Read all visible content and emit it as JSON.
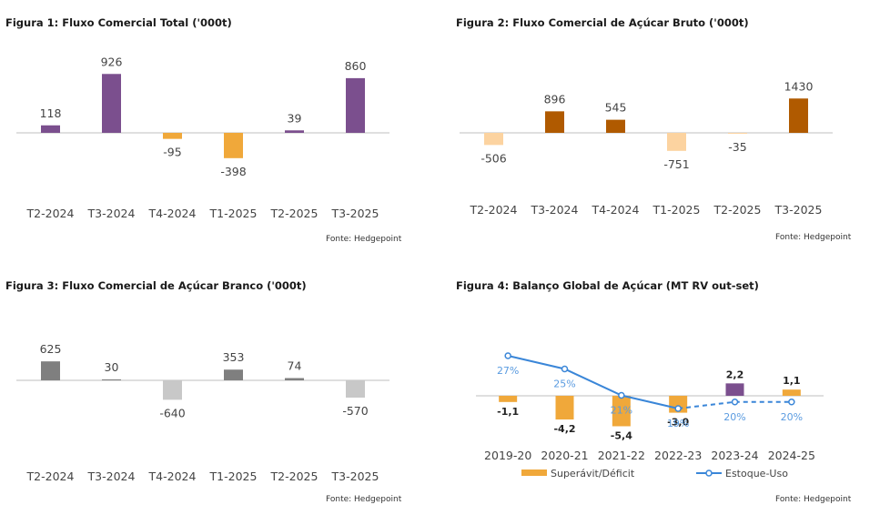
{
  "chart_data": [
    {
      "type": "bar",
      "title": "Figura 1: Fluxo Comercial Total ('000t)",
      "categories": [
        "T2-2024",
        "T3-2024",
        "T4-2024",
        "T1-2025",
        "T2-2025",
        "T3-2025"
      ],
      "values": [
        118,
        926,
        -95,
        -398,
        39,
        860
      ],
      "value_labels": [
        "118",
        "926",
        "-95",
        "-398",
        "39",
        "860"
      ],
      "colors": [
        "#7b4f8e",
        "#7b4f8e",
        "#f0a83a",
        "#f0a83a",
        "#7b4f8e",
        "#7b4f8e"
      ],
      "ylim": [
        -400,
        930
      ],
      "source": "Fonte: Hedgepoint"
    },
    {
      "type": "bar",
      "title": "Figura 2: Fluxo Comercial de Açúcar Bruto ('000t)",
      "categories": [
        "T2-2024",
        "T3-2024",
        "T4-2024",
        "T1-2025",
        "T2-2025",
        "T3-2025"
      ],
      "values": [
        -506,
        896,
        545,
        -751,
        -35,
        1430
      ],
      "value_labels": [
        "-506",
        "896",
        "545",
        "-751",
        "-35",
        "1430"
      ],
      "colors": [
        "#fcd3a0",
        "#b05a00",
        "#b05a00",
        "#fcd3a0",
        "#fcd3a0",
        "#b05a00"
      ],
      "ylim": [
        -760,
        1440
      ],
      "source": "Fonte: Hedgepoint"
    },
    {
      "type": "bar",
      "title": "Figura 3: Fluxo Comercial de Açúcar Branco ('000t)",
      "categories": [
        "T2-2024",
        "T3-2024",
        "T4-2024",
        "T1-2025",
        "T2-2025",
        "T3-2025"
      ],
      "values": [
        625,
        30,
        -640,
        353,
        74,
        -570
      ],
      "value_labels": [
        "625",
        "30",
        "-640",
        "353",
        "74",
        "-570"
      ],
      "colors": [
        "#7f7f7f",
        "#7f7f7f",
        "#c8c8c8",
        "#7f7f7f",
        "#7f7f7f",
        "#c8c8c8"
      ],
      "ylim": [
        -650,
        630
      ],
      "source": "Fonte: Hedgepoint"
    },
    {
      "type": "bar",
      "title": "Figura 4: Balanço Global de Açúcar (MT RV out-set)",
      "categories": [
        "2019-20",
        "2020-21",
        "2021-22",
        "2022-23",
        "2023-24",
        "2024-25"
      ],
      "series": [
        {
          "name": "Superávit/Déficit",
          "values": [
            -1.1,
            -4.2,
            -5.4,
            -3.0,
            2.2,
            1.1
          ],
          "value_labels": [
            "-1,1",
            "-4,2",
            "-5,4",
            "-3,0",
            "2,2",
            "1,1"
          ],
          "colors": [
            "#f0a83a",
            "#f0a83a",
            "#f0a83a",
            "#f0a83a",
            "#7b4f8e",
            "#f0a83a"
          ]
        },
        {
          "name": "Estoque-Uso",
          "type": "line",
          "values": [
            27,
            25,
            21,
            19,
            20,
            20
          ],
          "value_labels": [
            "27%",
            "25%",
            "21%",
            "19%",
            "20%",
            "20%"
          ],
          "color": "#3a86d8",
          "dashed_from_index": 3
        }
      ],
      "source": "Fonte: Hedgepoint"
    }
  ]
}
